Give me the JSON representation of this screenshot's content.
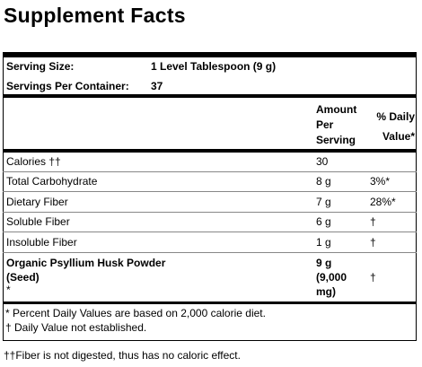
{
  "header": {
    "title": "Supplement Facts"
  },
  "serving": {
    "size_label": "Serving Size:",
    "size": "1 Level Tablespoon (9 g)",
    "per_container_label": "Servings Per Container:",
    "per_container": "37"
  },
  "table": {
    "columns": {
      "amount": "Amount Per Serving",
      "daily_value": "% Daily Value*"
    },
    "rows": [
      {
        "name": "Calories ††",
        "amount": "30"
      },
      {
        "name": "Total Carbohydrate",
        "amount": "8 g",
        "daily_value": "3%*"
      },
      {
        "name": "Dietary Fiber",
        "amount": "7 g",
        "daily_value": "28%*"
      },
      {
        "name": "Soluble Fiber",
        "amount": "6 g",
        "daily_value": "†"
      },
      {
        "name": "Insoluble Fiber",
        "amount": "1 g",
        "daily_value": "†"
      },
      {
        "name": "Organic Psyllium Husk Powder (Seed)",
        "note": "*",
        "amount": "9 g (9,000 mg)",
        "daily_value": "†"
      }
    ]
  },
  "footnotes": [
    "* Percent Daily Values are based on 2,000 calorie diet.",
    "† Daily Value not established."
  ],
  "footer": "††Fiber is not digested, thus has no caloric effect."
}
